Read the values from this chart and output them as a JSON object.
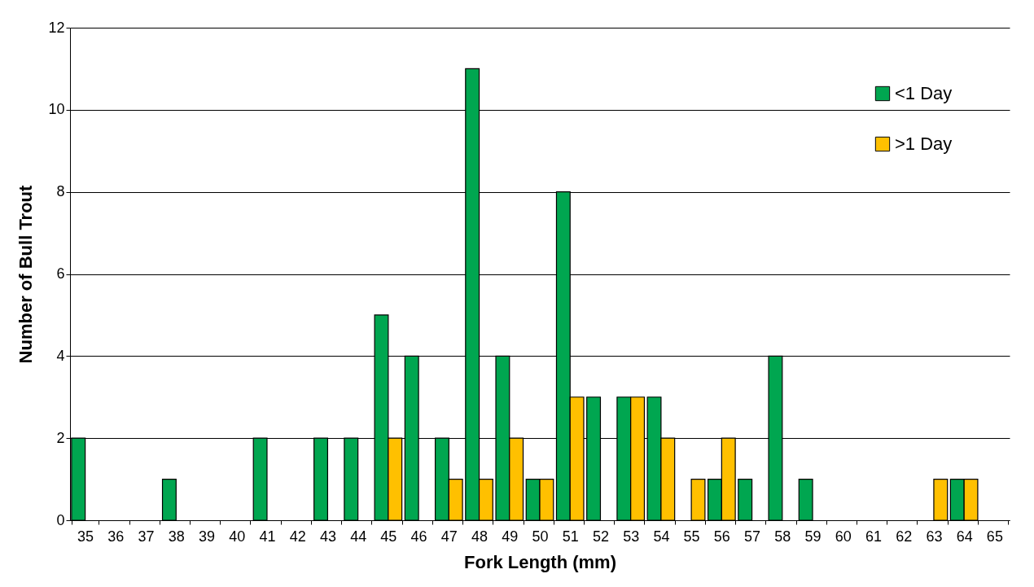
{
  "chart_data": {
    "type": "bar",
    "xlabel": "Fork Length (mm)",
    "ylabel": "Number of Bull Trout",
    "categories": [
      "35",
      "36",
      "37",
      "38",
      "39",
      "40",
      "41",
      "42",
      "43",
      "44",
      "45",
      "46",
      "47",
      "48",
      "49",
      "50",
      "51",
      "52",
      "53",
      "54",
      "55",
      "56",
      "57",
      "58",
      "59",
      "60",
      "61",
      "62",
      "63",
      "64",
      "65"
    ],
    "series": [
      {
        "name": "<1 Day",
        "color": "#00a650",
        "values": [
          2,
          0,
          0,
          1,
          0,
          0,
          2,
          0,
          2,
          2,
          5,
          4,
          2,
          11,
          4,
          1,
          8,
          3,
          3,
          3,
          0,
          1,
          1,
          4,
          1,
          0,
          0,
          0,
          0,
          1,
          0
        ]
      },
      {
        "name": ">1 Day",
        "color": "#ffc000",
        "values": [
          0,
          0,
          0,
          0,
          0,
          0,
          0,
          0,
          0,
          0,
          2,
          0,
          1,
          1,
          2,
          1,
          3,
          0,
          3,
          2,
          1,
          2,
          0,
          0,
          0,
          0,
          0,
          0,
          1,
          1,
          0
        ]
      }
    ],
    "ylim": [
      0,
      12
    ],
    "yticks": [
      0,
      2,
      4,
      6,
      8,
      10,
      12
    ],
    "grid": "y",
    "legend": "top right"
  }
}
